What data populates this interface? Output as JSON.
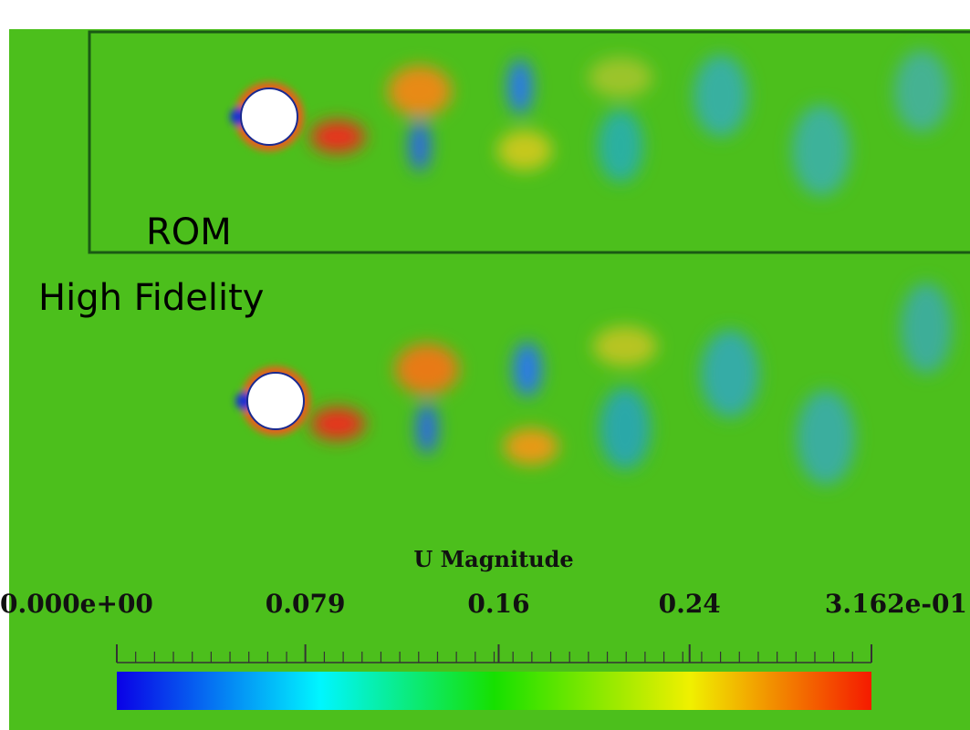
{
  "panels": {
    "top_label": "ROM",
    "bottom_label": "High Fidelity"
  },
  "colorbar": {
    "title": "U Magnitude",
    "range": [
      0,
      0.3162
    ],
    "ticks": [
      {
        "value": 0,
        "label": "0.000e+00"
      },
      0.079,
      0.16,
      0.24,
      {
        "value": 0.3162,
        "label": "3.162e-01"
      }
    ]
  }
}
